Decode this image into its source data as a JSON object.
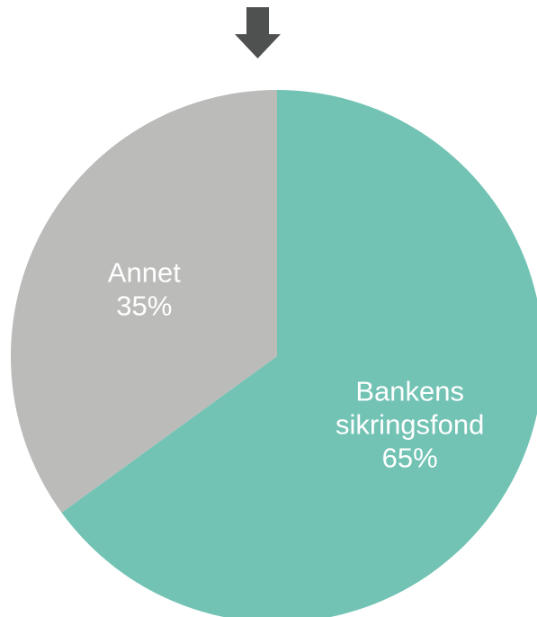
{
  "chart_data": {
    "type": "pie",
    "start_angle": "12 o'clock",
    "direction": "clockwise",
    "legend": "none",
    "slices": [
      {
        "label_lines": [
          "Bankens",
          "sikringsfond"
        ],
        "value": 65,
        "value_label": "65%",
        "color": "#72c3b4"
      },
      {
        "label_lines": [
          "Annet"
        ],
        "value": 35,
        "value_label": "35%",
        "color": "#bbbbba"
      }
    ]
  },
  "indicator": {
    "icon": "arrow-down-icon",
    "color": "#4f5150"
  }
}
